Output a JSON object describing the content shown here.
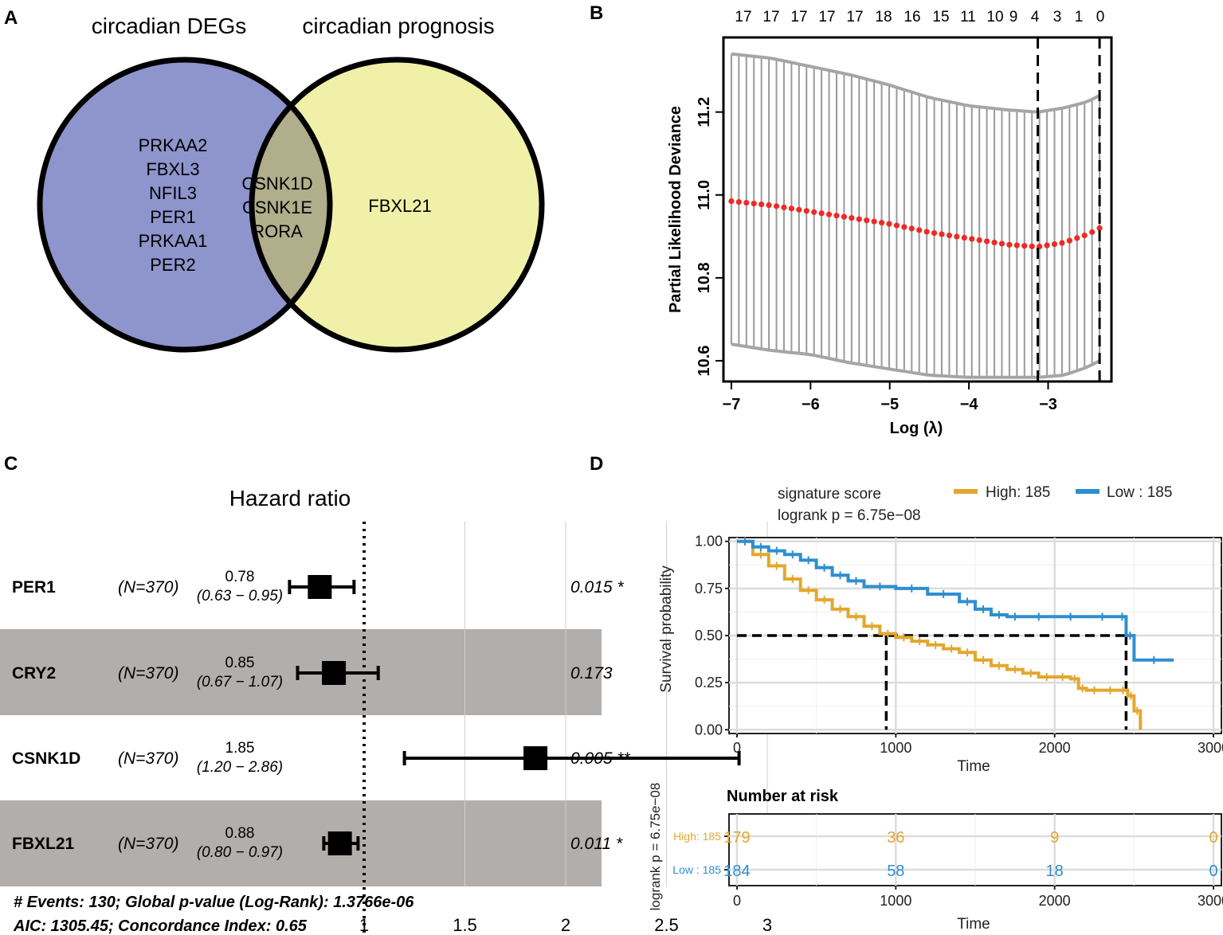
{
  "panels": {
    "A": {
      "label": "A",
      "left_title": "circadian DEGs",
      "right_title": "circadian prognosis",
      "left_only": [
        "PRKAA2",
        "FBXL3",
        "NFIL3",
        "PER1",
        "PRKAA1",
        "PER2"
      ],
      "overlap": [
        "CSNK1D",
        "CSNK1E",
        "RORA"
      ],
      "right_only": [
        "FBXL21"
      ],
      "colors": {
        "left": "#8e95cc",
        "right": "#f1f0a9",
        "overlap": "#b0ae8b"
      }
    },
    "B": {
      "label": "B",
      "ylabel": "Partial Likelihood Deviance",
      "xlabel": "Log (λ)",
      "top_ticks": [
        "17",
        "17",
        "17",
        "17",
        "17",
        "18",
        "16",
        "15",
        "11",
        "10",
        "9",
        "4",
        "3",
        "1",
        "0"
      ]
    },
    "C": {
      "label": "C",
      "title": "Hazard ratio",
      "footer_line1": "# Events: 130; Global p-value (Log-Rank): 1.3766e-06",
      "footer_line2": "AIC: 1305.45; Concordance Index: 0.65"
    },
    "D": {
      "label": "D",
      "legend_title": "signature score",
      "pvalue_text": "logrank p =  6.75e−08",
      "legend_high": "High:  185",
      "legend_low": "Low :  185",
      "ylabel": "Survival probability",
      "xlabel": "Time",
      "risk_title": "Number at risk",
      "risk_xlabel": "Time",
      "risk_side_label": "logrank p =  6.75e−08",
      "risk_rows": [
        {
          "label": "High: 185",
          "counts": [
            "179",
            "36",
            "9",
            "0"
          ],
          "color": "#e3a72f"
        },
        {
          "label": "Low : 185",
          "counts": [
            "184",
            "58",
            "18",
            "0"
          ],
          "color": "#2e8fcf"
        }
      ],
      "colors": {
        "high": "#e3a72f",
        "low": "#2e8fcf"
      }
    }
  },
  "chart_data": [
    {
      "type": "line",
      "panel": "B",
      "title": "",
      "xlabel": "Log (λ)",
      "ylabel": "Partial Likelihood Deviance",
      "xlim": [
        -7.1,
        -2.2
      ],
      "ylim": [
        10.55,
        11.38
      ],
      "xticks": [
        -7,
        -6,
        -5,
        -4,
        -3
      ],
      "yticks": [
        10.6,
        10.8,
        11.0,
        11.2
      ],
      "x": [
        -7.0,
        -6.5,
        -6.0,
        -5.5,
        -5.0,
        -4.5,
        -4.0,
        -3.5,
        -3.13,
        -2.8,
        -2.5,
        -2.35
      ],
      "mean": [
        10.985,
        10.975,
        10.96,
        10.945,
        10.93,
        10.91,
        10.895,
        10.88,
        10.875,
        10.885,
        10.905,
        10.92
      ],
      "upper": [
        11.34,
        11.33,
        11.31,
        11.29,
        11.265,
        11.235,
        11.215,
        11.205,
        11.2,
        11.21,
        11.225,
        11.24
      ],
      "lower": [
        10.64,
        10.625,
        10.615,
        10.595,
        10.58,
        10.565,
        10.56,
        10.56,
        10.56,
        10.565,
        10.585,
        10.6
      ],
      "vlines": [
        -3.13,
        -2.35
      ]
    },
    {
      "type": "table",
      "subtype": "forest",
      "panel": "C",
      "title": "Hazard ratio",
      "axis_ticks": [
        1,
        1.5,
        2,
        2.5,
        3
      ],
      "reference_line": 1,
      "rows": [
        {
          "gene": "PER1",
          "n": "(N=370)",
          "hr": 0.78,
          "lo": 0.63,
          "hi": 0.95,
          "hr_text": "0.78",
          "ci_text": "(0.63 − 0.95)",
          "p_text": "0.015 *",
          "shaded": false
        },
        {
          "gene": "CRY2",
          "n": "(N=370)",
          "hr": 0.85,
          "lo": 0.67,
          "hi": 1.07,
          "hr_text": "0.85",
          "ci_text": "(0.67 − 1.07)",
          "p_text": "0.173",
          "shaded": true
        },
        {
          "gene": "CSNK1D",
          "n": "(N=370)",
          "hr": 1.85,
          "lo": 1.2,
          "hi": 2.86,
          "hr_text": "1.85",
          "ci_text": "(1.20 − 2.86)",
          "p_text": "0.005 **",
          "shaded": false
        },
        {
          "gene": "FBXL21",
          "n": "(N=370)",
          "hr": 0.88,
          "lo": 0.8,
          "hi": 0.97,
          "hr_text": "0.88",
          "ci_text": "(0.80 − 0.97)",
          "p_text": "0.011 *",
          "shaded": true
        }
      ]
    },
    {
      "type": "line",
      "subtype": "kaplan-meier",
      "panel": "D",
      "xlabel": "Time",
      "ylabel": "Survival probability",
      "xlim": [
        -50,
        3050
      ],
      "ylim": [
        -0.02,
        1.02
      ],
      "xticks": [
        0,
        1000,
        2000,
        3000
      ],
      "yticks": [
        "0.00",
        "0.25",
        "0.50",
        "0.75",
        "1.00"
      ],
      "series": [
        {
          "name": "High",
          "x": [
            0,
            100,
            200,
            300,
            400,
            500,
            600,
            700,
            800,
            900,
            1000,
            1100,
            1200,
            1300,
            1400,
            1500,
            1600,
            1700,
            1800,
            1900,
            2000,
            2100,
            2150,
            2200,
            2300,
            2400,
            2460,
            2500,
            2540
          ],
          "y": [
            1.0,
            0.93,
            0.87,
            0.8,
            0.74,
            0.69,
            0.64,
            0.6,
            0.55,
            0.51,
            0.49,
            0.47,
            0.45,
            0.43,
            0.41,
            0.37,
            0.34,
            0.32,
            0.3,
            0.28,
            0.28,
            0.27,
            0.22,
            0.21,
            0.21,
            0.21,
            0.18,
            0.1,
            0.0
          ]
        },
        {
          "name": "Low",
          "x": [
            0,
            100,
            200,
            300,
            400,
            500,
            600,
            700,
            800,
            1000,
            1200,
            1400,
            1500,
            1600,
            1700,
            1800,
            2000,
            2200,
            2400,
            2450,
            2500,
            2750
          ],
          "y": [
            1.0,
            0.97,
            0.95,
            0.93,
            0.9,
            0.86,
            0.82,
            0.79,
            0.76,
            0.75,
            0.72,
            0.68,
            0.64,
            0.61,
            0.6,
            0.6,
            0.6,
            0.6,
            0.6,
            0.5,
            0.37,
            0.37
          ]
        }
      ],
      "median_lines": [
        {
          "x": 940,
          "y": 0.5
        },
        {
          "x": 2450,
          "y": 0.5
        }
      ]
    }
  ]
}
